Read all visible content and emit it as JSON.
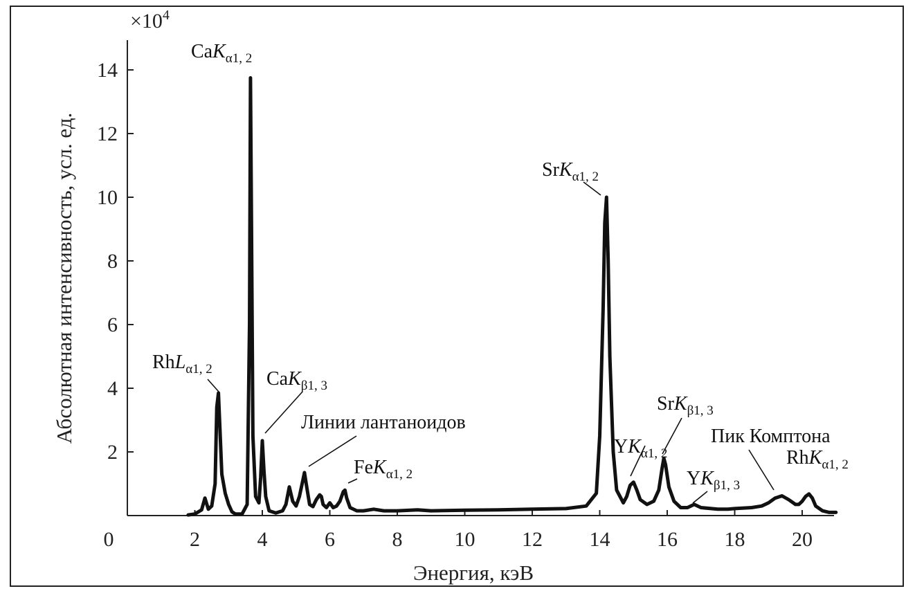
{
  "chart_data": {
    "type": "line",
    "title": "",
    "xlabel": "Энергия, кэВ",
    "ylabel": "Абсолютная интенсивность, усл. ед.",
    "y_multiplier": "×10",
    "y_multiplier_exp": "4",
    "xlim": [
      0,
      22
    ],
    "ylim": [
      0,
      15
    ],
    "x_ticks": [
      "0",
      "2",
      "4",
      "6",
      "8",
      "10",
      "12",
      "14",
      "16",
      "18",
      "20"
    ],
    "y_ticks": [
      "2",
      "4",
      "6",
      "8",
      "10",
      "12",
      "14"
    ],
    "grid": false,
    "legend": "none",
    "line_color": "#111111",
    "series": [
      {
        "x": [
          1.8,
          2.0,
          2.2,
          2.3,
          2.4,
          2.5,
          2.6,
          2.65,
          2.7,
          2.8,
          2.9,
          3.0,
          3.1,
          3.2,
          3.4,
          3.55,
          3.62,
          3.65,
          3.68,
          3.72,
          3.8,
          3.9,
          3.95,
          4.0,
          4.05,
          4.1,
          4.2,
          4.4,
          4.6,
          4.7,
          4.8,
          4.9,
          5.0,
          5.1,
          5.2,
          5.25,
          5.3,
          5.4,
          5.5,
          5.6,
          5.7,
          5.75,
          5.8,
          5.9,
          6.0,
          6.1,
          6.2,
          6.3,
          6.4,
          6.45,
          6.5,
          6.6,
          6.8,
          7.0,
          7.3,
          7.6,
          8.0,
          8.6,
          9.0,
          10.0,
          11.0,
          12.0,
          13.0,
          13.6,
          13.9,
          14.0,
          14.1,
          14.15,
          14.2,
          14.25,
          14.3,
          14.4,
          14.5,
          14.7,
          14.8,
          14.9,
          15.0,
          15.1,
          15.2,
          15.4,
          15.6,
          15.75,
          15.85,
          15.9,
          15.95,
          16.05,
          16.2,
          16.4,
          16.6,
          16.8,
          17.0,
          17.5,
          17.8,
          18.0,
          18.5,
          18.8,
          19.0,
          19.2,
          19.4,
          19.6,
          19.8,
          19.9,
          20.0,
          20.1,
          20.2,
          20.3,
          20.4,
          20.6,
          20.8,
          21.0
        ],
        "y": [
          0.02,
          0.05,
          0.18,
          0.55,
          0.2,
          0.3,
          1.0,
          3.4,
          3.85,
          1.3,
          0.7,
          0.35,
          0.12,
          0.05,
          0.05,
          0.35,
          6.0,
          13.75,
          9.0,
          2.5,
          0.6,
          0.4,
          1.2,
          2.35,
          1.4,
          0.6,
          0.15,
          0.08,
          0.15,
          0.35,
          0.9,
          0.45,
          0.3,
          0.6,
          1.1,
          1.35,
          1.0,
          0.35,
          0.28,
          0.5,
          0.65,
          0.6,
          0.35,
          0.25,
          0.4,
          0.25,
          0.3,
          0.45,
          0.75,
          0.8,
          0.55,
          0.25,
          0.15,
          0.15,
          0.2,
          0.15,
          0.15,
          0.18,
          0.15,
          0.17,
          0.18,
          0.2,
          0.22,
          0.3,
          0.7,
          2.5,
          6.5,
          9.2,
          10.0,
          8.0,
          5.0,
          2.0,
          0.8,
          0.4,
          0.6,
          0.95,
          1.05,
          0.8,
          0.5,
          0.35,
          0.45,
          0.8,
          1.5,
          1.8,
          1.6,
          0.9,
          0.45,
          0.25,
          0.25,
          0.35,
          0.25,
          0.2,
          0.2,
          0.22,
          0.25,
          0.3,
          0.4,
          0.55,
          0.62,
          0.5,
          0.35,
          0.35,
          0.45,
          0.6,
          0.68,
          0.55,
          0.3,
          0.15,
          0.1,
          0.1
        ]
      }
    ],
    "annotations": [
      {
        "pre": "Rh",
        "sym": "L",
        "sub": "α1, 2"
      },
      {
        "pre": "Ca",
        "sym": "K",
        "sub": "α1, 2"
      },
      {
        "pre": "Ca",
        "sym": "K",
        "sub": "β1, 3"
      },
      {
        "text": "Линии лантаноидов"
      },
      {
        "pre": "Fe",
        "sym": "K",
        "sub": "α1, 2"
      },
      {
        "pre": "Sr",
        "sym": "K",
        "sub": "α1, 2"
      },
      {
        "pre": "Y",
        "sym": "K",
        "sub": "α1, 2"
      },
      {
        "pre": "Sr",
        "sym": "K",
        "sub": "β1, 3"
      },
      {
        "pre": "Y",
        "sym": "K",
        "sub": "β1, 3"
      },
      {
        "text": "Пик Комптона"
      },
      {
        "pre": "Rh",
        "sym": "K",
        "sub": "α1, 2"
      }
    ]
  }
}
